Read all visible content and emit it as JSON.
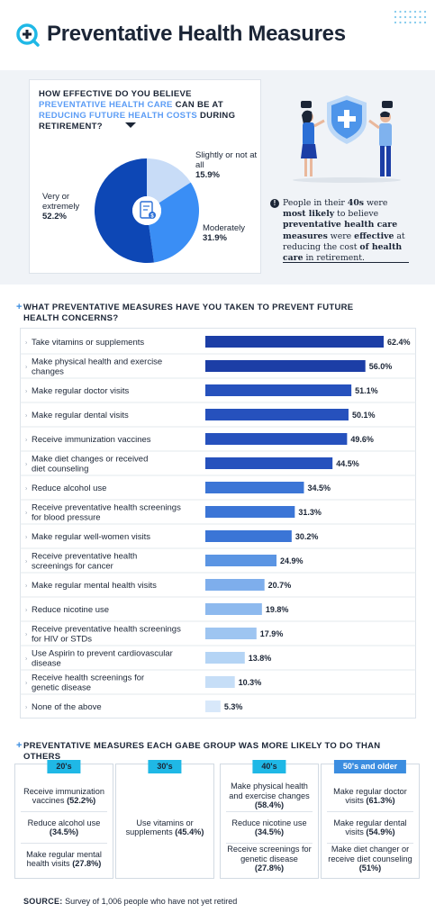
{
  "header": {
    "title": "Preventative Health Measures"
  },
  "question": {
    "prefix": "HOW EFFECTIVE DO YOU BELIEVE ",
    "highlight1": "PREVENTATIVE HEALTH CARE",
    "mid": " CAN BE AT ",
    "highlight2": "REDUCING FUTURE HEALTH COSTS",
    "suffix": " DURING RETIREMENT?"
  },
  "insight": {
    "text1": "People in their ",
    "bold1": "40s",
    "text2": " were ",
    "bold2": "most likely",
    "text3": " to believe ",
    "bold3": "preventative health care measures",
    "text4": " were ",
    "bold4": "effective",
    "text5": " at reducing the cost ",
    "bold5": "of health care",
    "text6": " in retirement."
  },
  "chart_data": [
    {
      "type": "pie",
      "title": "HOW EFFECTIVE DO YOU BELIEVE PREVENTATIVE HEALTH CARE CAN BE AT REDUCING FUTURE HEALTH COSTS DURING RETIREMENT?",
      "slices": [
        {
          "label": "Very or extremely",
          "value": 52.2,
          "display": "52.2%",
          "color": "#0d47b5"
        },
        {
          "label": "Moderately",
          "value": 31.9,
          "display": "31.9%",
          "color": "#3a8ef5"
        },
        {
          "label": "Slightly or not at all",
          "value": 15.9,
          "display": "15.9%",
          "color": "#c8dcf7"
        }
      ]
    },
    {
      "type": "bar",
      "orientation": "horizontal",
      "title": "WHAT PREVENTATIVE MEASURES HAVE YOU TAKEN TO PREVENT FUTURE HEALTH CONCERNS?",
      "xlim": [
        0,
        62.4
      ],
      "categories": [
        [
          "Take vitamins or supplements"
        ],
        [
          "Make physical health and exercise",
          "changes"
        ],
        [
          "Make regular doctor visits"
        ],
        [
          "Make regular dental visits"
        ],
        [
          "Receive immunization vaccines"
        ],
        [
          "Make diet changes or received",
          "diet counseling"
        ],
        [
          "Reduce alcohol use"
        ],
        [
          "Receive preventative health screenings",
          "for blood pressure"
        ],
        [
          "Make regular well-women visits"
        ],
        [
          "Receive preventative health",
          "screenings for cancer"
        ],
        [
          "Make regular mental health visits"
        ],
        [
          "Reduce nicotine use"
        ],
        [
          "Receive preventative health screenings",
          "for HIV or STDs"
        ],
        [
          "Use Aspirin to prevent cardiovascular",
          "disease"
        ],
        [
          "Receive health screenings for",
          "genetic disease"
        ],
        [
          "None of the above"
        ]
      ],
      "values": [
        62.4,
        56.0,
        51.1,
        50.1,
        49.6,
        44.5,
        34.5,
        31.3,
        30.2,
        24.9,
        20.7,
        19.8,
        17.9,
        13.8,
        10.3,
        5.3
      ],
      "labels": [
        "62.4%",
        "56.0%",
        "51.1%",
        "50.1%",
        "49.6%",
        "44.5%",
        "34.5%",
        "31.3%",
        "30.2%",
        "24.9%",
        "20.7%",
        "19.8%",
        "17.9%",
        "13.8%",
        "10.3%",
        "5.3%"
      ],
      "colors": [
        "#1c3ea6",
        "#1c3ea6",
        "#2651bd",
        "#2651bd",
        "#2651bd",
        "#2651bd",
        "#3b75d6",
        "#3b75d6",
        "#3b75d6",
        "#5b95e3",
        "#7eaeec",
        "#8db9ee",
        "#9ec5f1",
        "#b4d4f5",
        "#c6def7",
        "#d8e8fa"
      ]
    }
  ],
  "groups": {
    "heading": "PREVENTATIVE MEASURES EACH GABE GROUP WAS MORE LIKELY TO DO THAN OTHERS",
    "cards": [
      {
        "tag": "20's",
        "items": [
          {
            "text": "Receive immunization vaccines",
            "value": "(52.2%)"
          },
          {
            "text": "Reduce alcohol use",
            "value": "(34.5%)"
          },
          {
            "text": "Make regular mental health visits",
            "value": "(27.8%)"
          }
        ]
      },
      {
        "tag": "30's",
        "items": [
          {
            "text": "Use vitamins or supplements",
            "value": "(45.4%)"
          }
        ]
      },
      {
        "tag": "40's",
        "items": [
          {
            "text": "Make physical health and exercise changes",
            "value": "(58.4%)"
          },
          {
            "text": "Reduce nicotine use",
            "value": "(34.5%)"
          },
          {
            "text": "Receive screenings for genetic disease",
            "value": "(27.8%)"
          }
        ]
      },
      {
        "tag": "50's and older",
        "items": [
          {
            "text": "Make regular doctor visits",
            "value": "(61.3%)"
          },
          {
            "text": "Make regular dental visits",
            "value": "(54.9%)"
          },
          {
            "text": "Make diet changer or receive diet counseling",
            "value": "(51%)"
          }
        ]
      }
    ]
  },
  "source": {
    "label": "SOURCE:",
    "text": "Survey of 1,006 people who have not yet retired"
  }
}
